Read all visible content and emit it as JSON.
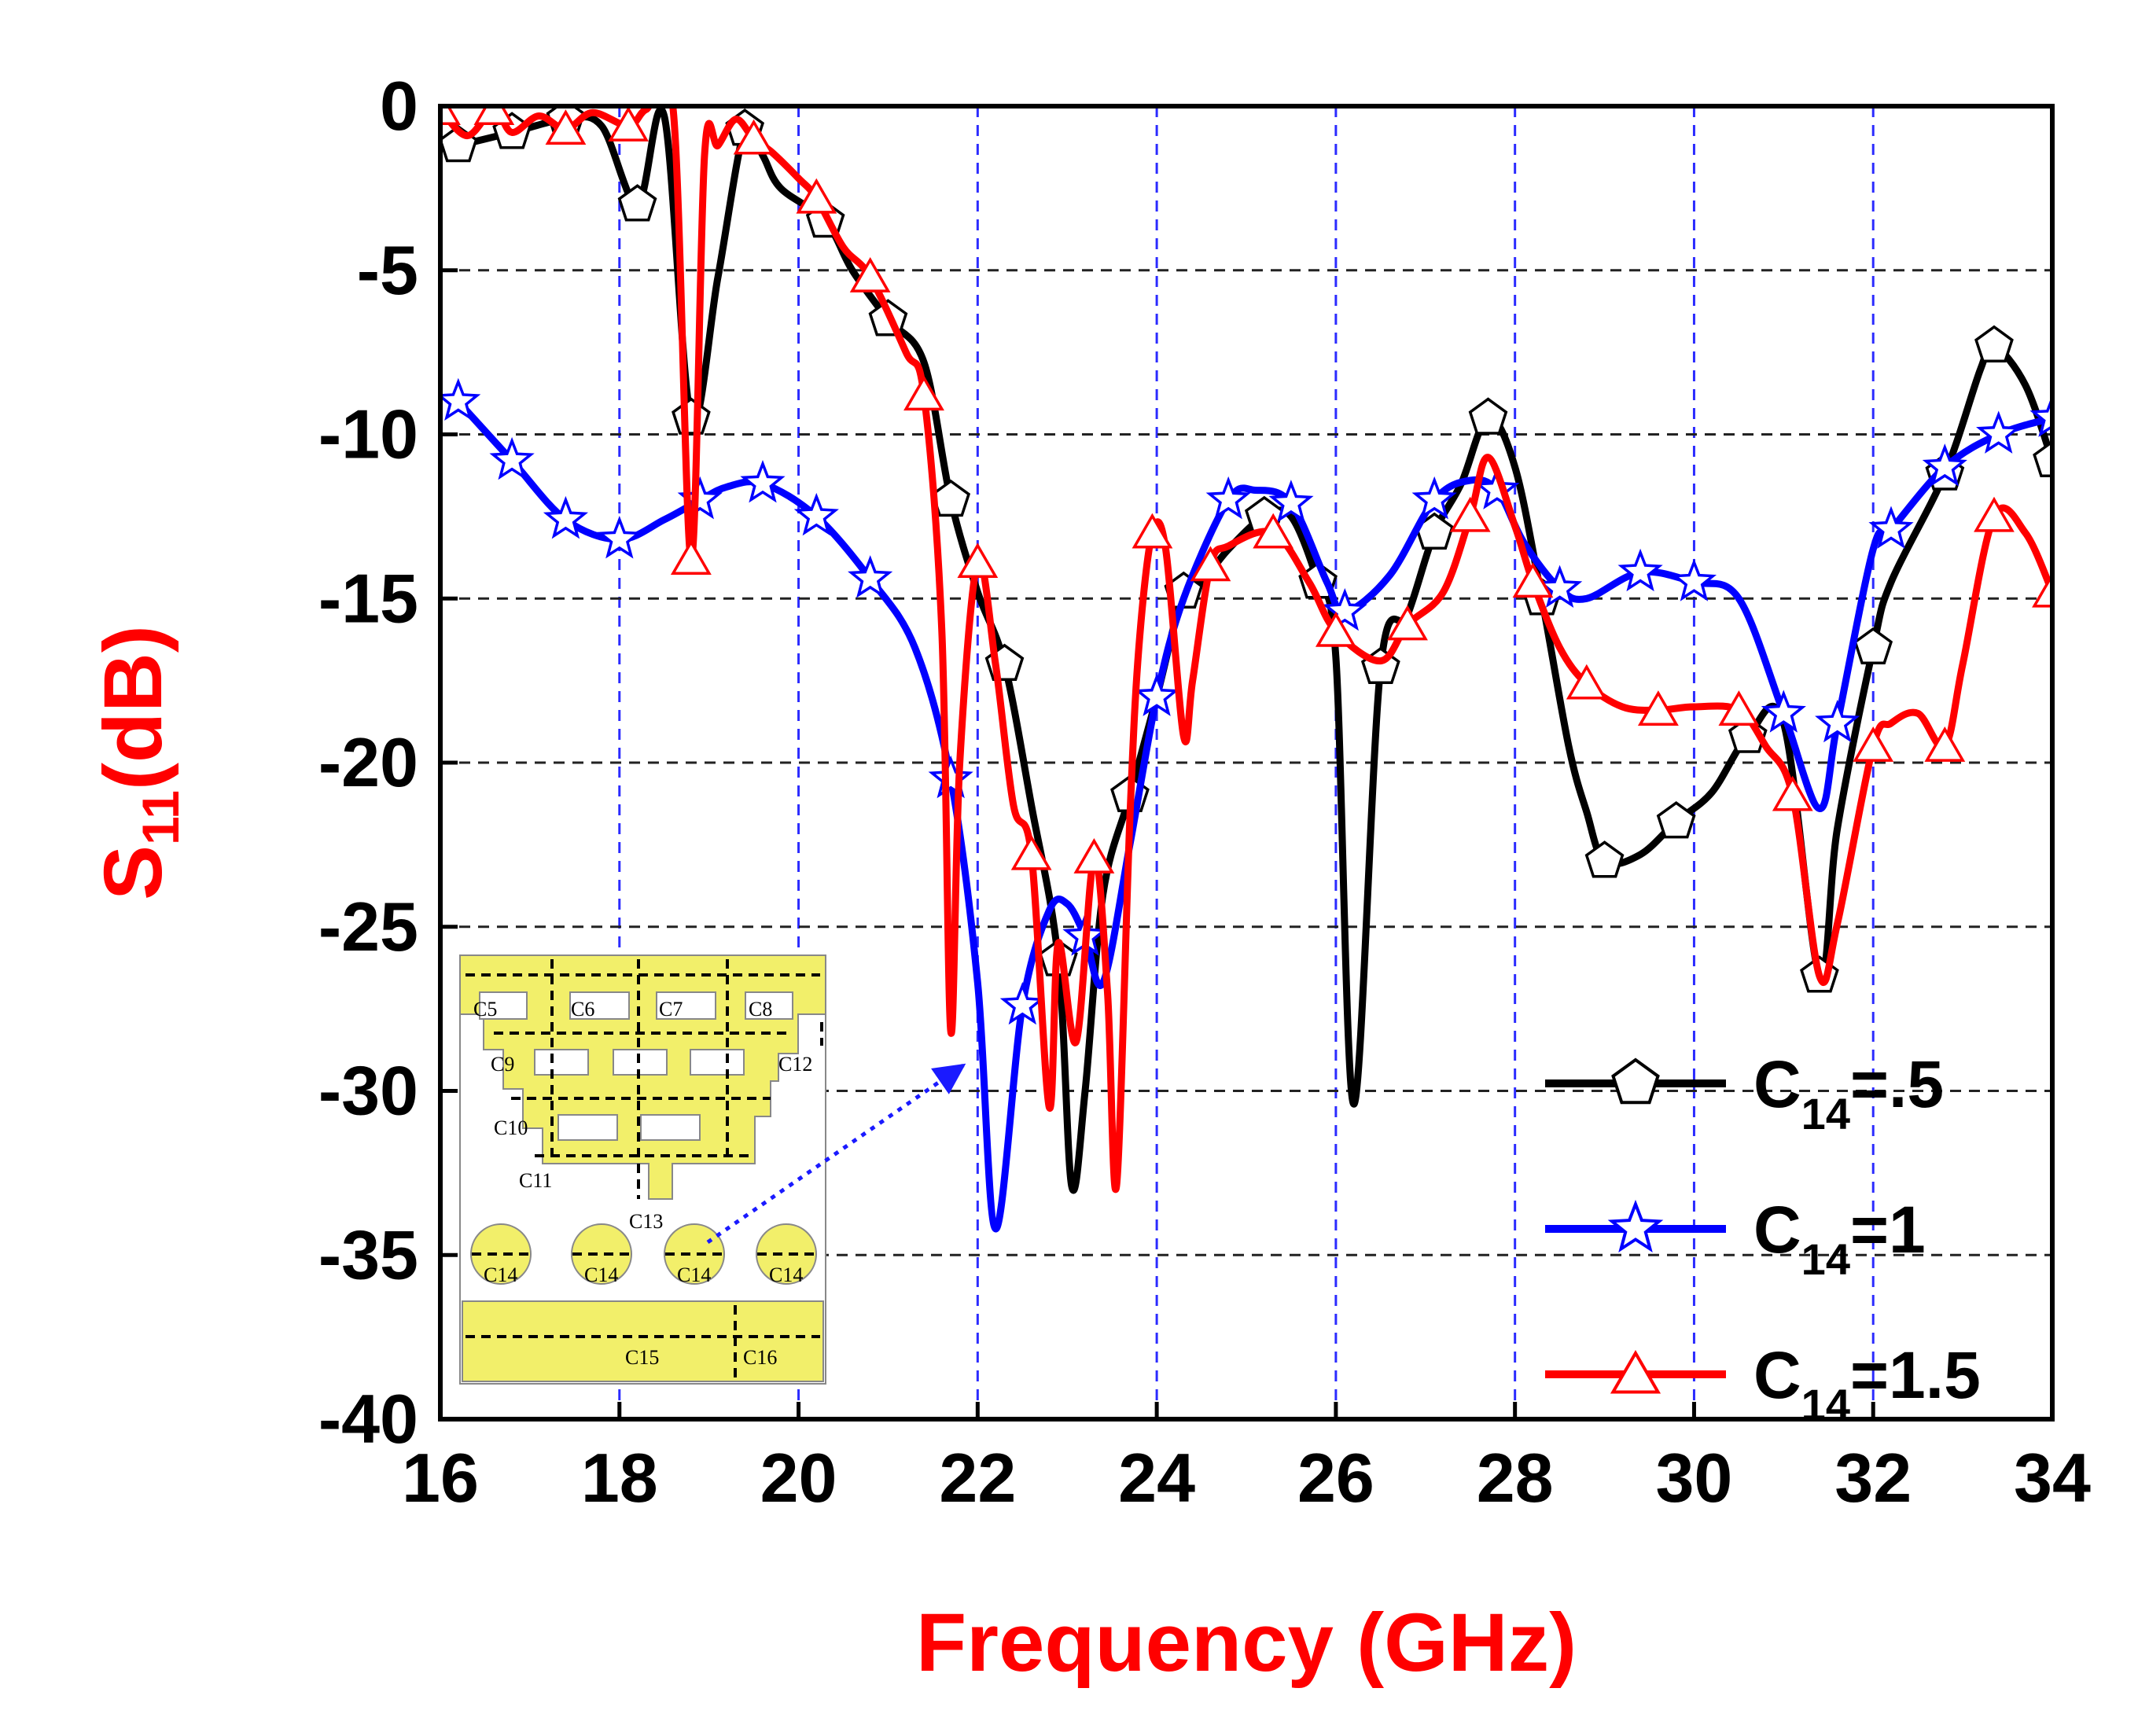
{
  "chart_data": {
    "type": "line",
    "title": "",
    "xlabel": "Frequency (GHz)",
    "ylabel": {
      "base": "S",
      "sub": "11",
      "suffix": "(dB)"
    },
    "xlim": [
      16,
      34
    ],
    "ylim": [
      -40,
      0
    ],
    "xticks": [
      "16",
      "18",
      "20",
      "22",
      "24",
      "26",
      "28",
      "30",
      "32",
      "34"
    ],
    "yticks": [
      "0",
      "-5",
      "-10",
      "-15",
      "-20",
      "-25",
      "-30",
      "-35",
      "-40"
    ],
    "grid": true,
    "legend_position": "bottom-right",
    "series": [
      {
        "name": "C14=.5",
        "label_base": "C",
        "label_sub": "14",
        "label_suffix": "=.5",
        "color": "#000000",
        "marker": "pentagon",
        "points": [
          [
            16.2,
            -1.2
          ],
          [
            16.8,
            -0.8
          ],
          [
            17.4,
            -0.4
          ],
          [
            17.8,
            -0.6
          ],
          [
            18.2,
            -3.0
          ],
          [
            18.5,
            -0.3
          ],
          [
            18.8,
            -9.5
          ],
          [
            19.1,
            -5.2
          ],
          [
            19.4,
            -0.7
          ],
          [
            19.6,
            -1.5
          ],
          [
            19.8,
            -2.5
          ],
          [
            20.3,
            -3.5
          ],
          [
            20.6,
            -5.0
          ],
          [
            21.0,
            -6.5
          ],
          [
            21.4,
            -7.8
          ],
          [
            21.7,
            -12.0
          ],
          [
            22.0,
            -14.8
          ],
          [
            22.3,
            -17.0
          ],
          [
            22.6,
            -21.3
          ],
          [
            22.9,
            -26.0
          ],
          [
            23.05,
            -32.9
          ],
          [
            23.2,
            -30.0
          ],
          [
            23.4,
            -24.0
          ],
          [
            23.7,
            -21.0
          ],
          [
            24.0,
            -18.0
          ],
          [
            24.3,
            -14.8
          ],
          [
            24.5,
            -14.5
          ],
          [
            24.8,
            -13.5
          ],
          [
            25.2,
            -12.5
          ],
          [
            25.5,
            -12.5
          ],
          [
            25.8,
            -14.5
          ],
          [
            26.0,
            -16.8
          ],
          [
            26.2,
            -30.4
          ],
          [
            26.5,
            -17.1
          ],
          [
            26.8,
            -15.5
          ],
          [
            27.1,
            -13.0
          ],
          [
            27.4,
            -11.5
          ],
          [
            27.7,
            -9.5
          ],
          [
            28.0,
            -11.0
          ],
          [
            28.3,
            -15.0
          ],
          [
            28.6,
            -19.5
          ],
          [
            28.8,
            -21.5
          ],
          [
            29.0,
            -23.0
          ],
          [
            29.4,
            -22.8
          ],
          [
            29.8,
            -21.8
          ],
          [
            30.2,
            -20.9
          ],
          [
            30.6,
            -19.2
          ],
          [
            31.0,
            -18.8
          ],
          [
            31.4,
            -26.5
          ],
          [
            31.6,
            -22.0
          ],
          [
            32.0,
            -16.5
          ],
          [
            32.2,
            -14.5
          ],
          [
            32.8,
            -11.2
          ],
          [
            33.2,
            -8.0
          ],
          [
            33.35,
            -7.3
          ],
          [
            33.7,
            -8.5
          ],
          [
            34.0,
            -10.8
          ]
        ]
      },
      {
        "name": "C14=1",
        "label_base": "C",
        "label_sub": "14",
        "label_suffix": "=1",
        "color": "#0000ff",
        "marker": "star",
        "points": [
          [
            16.2,
            -9.0
          ],
          [
            16.8,
            -10.8
          ],
          [
            17.4,
            -12.6
          ],
          [
            18.0,
            -13.2
          ],
          [
            18.5,
            -12.6
          ],
          [
            18.9,
            -12.0
          ],
          [
            19.2,
            -11.6
          ],
          [
            19.6,
            -11.5
          ],
          [
            20.2,
            -12.5
          ],
          [
            20.8,
            -14.4
          ],
          [
            21.3,
            -16.5
          ],
          [
            21.7,
            -20.5
          ],
          [
            22.0,
            -26.7
          ],
          [
            22.2,
            -34.2
          ],
          [
            22.5,
            -27.4
          ],
          [
            22.8,
            -24.5
          ],
          [
            23.0,
            -24.3
          ],
          [
            23.2,
            -25.3
          ],
          [
            23.4,
            -26.7
          ],
          [
            23.7,
            -22.5
          ],
          [
            24.0,
            -18.0
          ],
          [
            24.3,
            -15.0
          ],
          [
            24.8,
            -12.0
          ],
          [
            25.1,
            -11.7
          ],
          [
            25.5,
            -12.1
          ],
          [
            25.9,
            -14.5
          ],
          [
            26.1,
            -15.4
          ],
          [
            26.6,
            -14.3
          ],
          [
            27.1,
            -12.0
          ],
          [
            27.5,
            -11.4
          ],
          [
            27.8,
            -11.7
          ],
          [
            28.1,
            -13.3
          ],
          [
            28.5,
            -14.7
          ],
          [
            28.8,
            -15.0
          ],
          [
            29.4,
            -14.2
          ],
          [
            30.0,
            -14.5
          ],
          [
            30.5,
            -15.0
          ],
          [
            31.0,
            -18.5
          ],
          [
            31.4,
            -21.4
          ],
          [
            31.6,
            -18.8
          ],
          [
            32.0,
            -13.5
          ],
          [
            32.2,
            -12.9
          ],
          [
            32.8,
            -11.0
          ],
          [
            33.4,
            -10.0
          ],
          [
            34.0,
            -9.5
          ]
        ]
      },
      {
        "name": "C14=1.5",
        "label_base": "C",
        "label_sub": "14",
        "label_suffix": "=1.5",
        "color": "#ff0000",
        "marker": "triangle",
        "points": [
          [
            16.0,
            -0.1
          ],
          [
            16.3,
            -0.9
          ],
          [
            16.6,
            -0.1
          ],
          [
            16.8,
            -0.8
          ],
          [
            17.1,
            -0.3
          ],
          [
            17.4,
            -0.7
          ],
          [
            17.7,
            -0.2
          ],
          [
            18.1,
            -0.6
          ],
          [
            18.3,
            -0.1
          ],
          [
            18.6,
            -0.1
          ],
          [
            18.8,
            -13.8
          ],
          [
            18.95,
            -1.5
          ],
          [
            19.1,
            -1.2
          ],
          [
            19.3,
            -0.4
          ],
          [
            19.5,
            -1.0
          ],
          [
            19.7,
            -1.4
          ],
          [
            20.0,
            -2.2
          ],
          [
            20.2,
            -2.8
          ],
          [
            20.5,
            -4.3
          ],
          [
            20.8,
            -5.2
          ],
          [
            21.2,
            -7.5
          ],
          [
            21.4,
            -8.8
          ],
          [
            21.6,
            -16.0
          ],
          [
            21.7,
            -28.2
          ],
          [
            21.8,
            -20.0
          ],
          [
            22.0,
            -13.9
          ],
          [
            22.2,
            -17.0
          ],
          [
            22.4,
            -21.3
          ],
          [
            22.6,
            -22.8
          ],
          [
            22.8,
            -30.5
          ],
          [
            22.9,
            -25.5
          ],
          [
            23.1,
            -28.5
          ],
          [
            23.3,
            -22.9
          ],
          [
            23.45,
            -27.0
          ],
          [
            23.55,
            -32.9
          ],
          [
            23.7,
            -21.7
          ],
          [
            23.8,
            -16.5
          ],
          [
            23.95,
            -13.0
          ],
          [
            24.1,
            -13.5
          ],
          [
            24.3,
            -19.2
          ],
          [
            24.4,
            -17.5
          ],
          [
            24.6,
            -14.0
          ],
          [
            24.8,
            -13.4
          ],
          [
            25.3,
            -13.0
          ],
          [
            25.7,
            -14.5
          ],
          [
            26.0,
            -16.0
          ],
          [
            26.5,
            -16.9
          ],
          [
            26.8,
            -15.8
          ],
          [
            27.2,
            -14.8
          ],
          [
            27.5,
            -12.5
          ],
          [
            27.7,
            -10.7
          ],
          [
            28.0,
            -12.8
          ],
          [
            28.2,
            -14.5
          ],
          [
            28.5,
            -16.5
          ],
          [
            28.8,
            -17.6
          ],
          [
            29.2,
            -18.3
          ],
          [
            29.6,
            -18.4
          ],
          [
            30.0,
            -18.3
          ],
          [
            30.5,
            -18.4
          ],
          [
            30.8,
            -19.5
          ],
          [
            31.1,
            -21.0
          ],
          [
            31.4,
            -26.5
          ],
          [
            31.6,
            -24.9
          ],
          [
            32.0,
            -19.5
          ],
          [
            32.2,
            -18.8
          ],
          [
            32.5,
            -18.5
          ],
          [
            32.8,
            -19.5
          ],
          [
            33.0,
            -17.0
          ],
          [
            33.35,
            -12.5
          ],
          [
            33.7,
            -13.0
          ],
          [
            34.0,
            -14.8
          ]
        ]
      }
    ],
    "inset_labels": {
      "c5": "C5",
      "c6": "C6",
      "c7": "C7",
      "c8": "C8",
      "c9": "C9",
      "c10": "C10",
      "c11": "C11",
      "c12": "C12",
      "c13": "C13",
      "c14": "C14",
      "c15": "C15",
      "c16": "C16"
    }
  }
}
